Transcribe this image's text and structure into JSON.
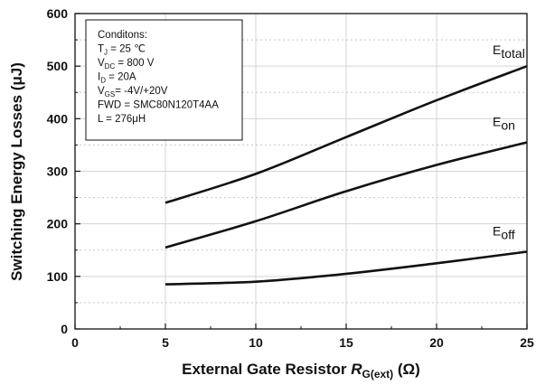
{
  "chart_data": {
    "type": "line",
    "title": "",
    "xlabel_main": "External Gate Resistor ",
    "xlabel_var": "R",
    "xlabel_sub": "G(ext)",
    "xlabel_unit": " (Ω)",
    "ylabel": "Switching Energy Losses (μJ)",
    "xlim": [
      0,
      25
    ],
    "ylim": [
      0,
      600
    ],
    "xticks": [
      0,
      5,
      10,
      15,
      20,
      25
    ],
    "yticks": [
      0,
      100,
      200,
      300,
      400,
      500,
      600
    ],
    "grid": true,
    "x": [
      5,
      10,
      15,
      20,
      25
    ],
    "series": [
      {
        "name_main": "E",
        "name_sub": "total",
        "values": [
          240,
          295,
          365,
          435,
          500
        ]
      },
      {
        "name_main": "E",
        "name_sub": "on",
        "values": [
          155,
          205,
          262,
          312,
          355
        ]
      },
      {
        "name_main": "E",
        "name_sub": "off",
        "values": [
          85,
          90,
          105,
          125,
          147
        ]
      }
    ],
    "conditions": {
      "heading": "Conditons:",
      "lines": [
        {
          "main": "T",
          "sub": "J",
          "rest": " =  25 ℃"
        },
        {
          "main": "V",
          "sub": "DC",
          "rest": " = 800 V"
        },
        {
          "main": "I",
          "sub": "D",
          "rest": " = 20A"
        },
        {
          "main": "V",
          "sub": "GS",
          "rest": "=  -4V/+20V"
        },
        {
          "main": "FWD = SMC80N120T4AA",
          "sub": "",
          "rest": ""
        },
        {
          "main": "L = 276μH",
          "sub": "",
          "rest": ""
        }
      ]
    }
  }
}
